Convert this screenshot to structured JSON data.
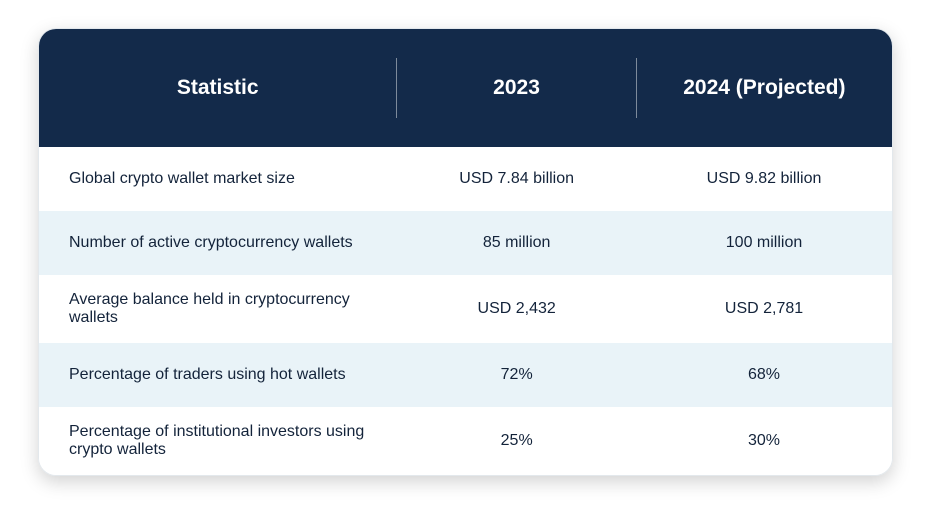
{
  "table": {
    "type": "table",
    "header_bg": "#132a4a",
    "header_text_color": "#ffffff",
    "header_fontsize": 21,
    "header_fontweight": 700,
    "row_odd_bg": "#ffffff",
    "row_even_bg": "#e9f3f8",
    "body_text_color": "#13233a",
    "body_fontsize": 16,
    "border_radius": 18,
    "columns": [
      {
        "label": "Statistic",
        "width_pct": 42,
        "align": "left"
      },
      {
        "label": "2023",
        "width_pct": 28,
        "align": "center"
      },
      {
        "label": "2024 (Projected)",
        "width_pct": 30,
        "align": "center"
      }
    ],
    "rows": [
      {
        "statistic": "Global crypto wallet market size",
        "y2023": "USD 7.84 billion",
        "y2024": "USD 9.82 billion"
      },
      {
        "statistic": "Number of active cryptocurrency wallets",
        "y2023": "85 million",
        "y2024": "100 million"
      },
      {
        "statistic": "Average balance held in cryptocurrency wallets",
        "y2023": "USD 2,432",
        "y2024": "USD 2,781"
      },
      {
        "statistic": "Percentage of traders using hot wallets",
        "y2023": "72%",
        "y2024": "68%"
      },
      {
        "statistic": "Percentage of institutional investors using crypto wallets",
        "y2023": "25%",
        "y2024": "30%"
      }
    ]
  }
}
